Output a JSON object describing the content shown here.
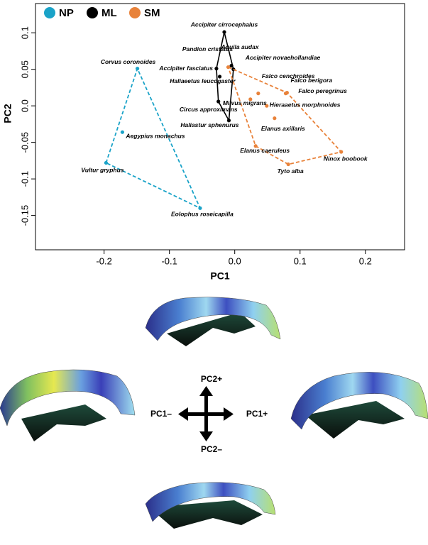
{
  "chart_data": {
    "type": "scatter",
    "xlabel": "PC1",
    "ylabel": "PC2",
    "xlim": [
      -0.305,
      0.26
    ],
    "ylim": [
      -0.197,
      0.14
    ],
    "xticks": [
      -0.2,
      -0.1,
      {
        "value": 0,
        "label": "0.0"
      },
      0.1,
      0.2
    ],
    "yticks": [
      -0.15,
      -0.1,
      -0.05,
      {
        "value": 0,
        "label": "0.0"
      },
      0.05,
      0.1
    ],
    "legend": "top-left",
    "series": [
      {
        "name": "NP",
        "color": "#1aa3c8",
        "hull_dash": true,
        "labels": [
          "Corvus coronoides",
          "Aegypius monachus",
          "Vultur gryphus",
          "Eolophus roseicapilla"
        ],
        "x": [
          -0.149,
          -0.172,
          -0.197,
          -0.053
        ],
        "y": [
          0.051,
          -0.036,
          -0.078,
          -0.14
        ]
      },
      {
        "name": "ML",
        "color": "#000000",
        "hull_dash": false,
        "labels": [
          "Accipiter cirrocephalus",
          "Aquila audax",
          "Accipiter novaehollandiae",
          "Accipiter fasciatus",
          "Haliaeetus leucogaster",
          "Circus approximans",
          "Haliastur sphenurus"
        ],
        "x": [
          -0.016,
          -0.005,
          -0.002,
          -0.028,
          -0.023,
          -0.025,
          -0.009
        ],
        "y": [
          0.101,
          0.055,
          0.05,
          0.051,
          0.04,
          0.006,
          -0.02
        ]
      },
      {
        "name": "SM",
        "color": "#e8823a",
        "hull_dash": true,
        "labels": [
          "Pandion cristatus",
          "Falco cenchroides",
          "Falco berigora",
          "Falco peregrinus",
          "Hieraaetus morphnoides",
          "Elanus axillaris",
          "Elanus caeruleus",
          "Tyto alba",
          "Ninox boobook",
          "Milvus migrans"
        ],
        "x": [
          -0.01,
          0.036,
          0.078,
          0.08,
          0.049,
          0.061,
          0.032,
          0.082,
          0.163,
          0.024
        ],
        "y": [
          0.053,
          0.017,
          0.017,
          0.018,
          0.0,
          -0.017,
          -0.055,
          -0.08,
          -0.063,
          0.009
        ]
      }
    ]
  },
  "diagram": {
    "up": "PC2+",
    "down": "PC2–",
    "left": "PC1–",
    "right": "PC1+"
  }
}
